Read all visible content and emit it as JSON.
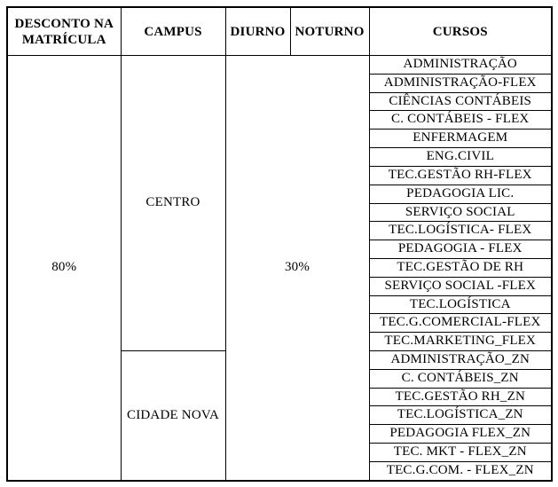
{
  "page": {
    "background_color": "#ffffff",
    "border_color": "#000000",
    "text_color": "#000000"
  },
  "table": {
    "headers": {
      "discount": "DESCONTO NA MATRÍCULA",
      "campus": "CAMPUS",
      "day": "DIURNO",
      "night": "NOTURNO",
      "courses": "CURSOS"
    },
    "discount_value": "80%",
    "shift_discount_value": "30%",
    "campuses": [
      {
        "name": "CENTRO",
        "courses": [
          "ADMINISTRAÇÃO",
          "ADMINISTRAÇÃO-FLEX",
          "CIÊNCIAS CONTÁBEIS",
          "C. CONTÁBEIS - FLEX",
          "ENFERMAGEM",
          "ENG.CIVIL",
          "TEC.GESTÃO RH-FLEX",
          "PEDAGOGIA LIC.",
          "SERVIÇO SOCIAL",
          "TEC.LOGÍSTICA- FLEX",
          "PEDAGOGIA - FLEX",
          "TEC.GESTÃO DE RH",
          "SERVIÇO SOCIAL -FLEX",
          "TEC.LOGÍSTICA",
          "TEC.G.COMERCIAL-FLEX",
          "TEC.MARKETING_FLEX"
        ]
      },
      {
        "name": "CIDADE NOVA",
        "courses": [
          "ADMINISTRAÇÃO_ZN",
          "C. CONTÁBEIS_ZN",
          "TEC.GESTÃO RH_ZN",
          "TEC.LOGÍSTICA_ZN",
          "PEDAGOGIA FLEX_ZN",
          "TEC. MKT - FLEX_ZN",
          "TEC.G.COM. - FLEX_ZN"
        ]
      }
    ]
  }
}
